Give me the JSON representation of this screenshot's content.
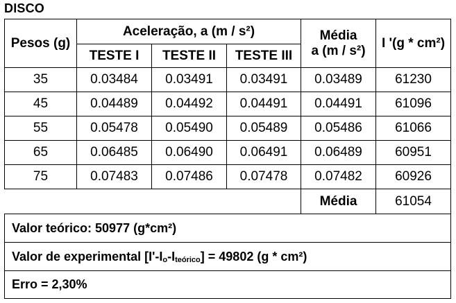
{
  "title": "DISCO",
  "headers": {
    "pesos": "Pesos (g)",
    "aceleracao": "Aceleração, a (m / s²)",
    "teste1": "TESTE I",
    "teste2": "TESTE II",
    "teste3": "TESTE III",
    "media_line1": "Média",
    "media_line2": "a (m / s²)",
    "inertia": "I '(g * cm²)"
  },
  "rows": [
    {
      "peso": "35",
      "t1": "0.03484",
      "t2": "0.03491",
      "t3": "0.03491",
      "media": "0.03489",
      "inertia": "61230"
    },
    {
      "peso": "45",
      "t1": "0.04489",
      "t2": "0.04492",
      "t3": "0.04491",
      "media": "0.04491",
      "inertia": "61096"
    },
    {
      "peso": "55",
      "t1": "0.05478",
      "t2": "0.05490",
      "t3": "0.05489",
      "media": "0.05486",
      "inertia": "61066"
    },
    {
      "peso": "65",
      "t1": "0.06485",
      "t2": "0.06490",
      "t3": "0.06491",
      "media": "0.06489",
      "inertia": "60951"
    },
    {
      "peso": "75",
      "t1": "0.07483",
      "t2": "0.07486",
      "t3": "0.07478",
      "media": "0.07482",
      "inertia": "60926"
    }
  ],
  "media_row": {
    "label": "Média",
    "value": "61054"
  },
  "footer": {
    "valor_teorico": "Valor teórico: 50977 (g*cm²)",
    "experimental_prefix": "Valor de experimental [I'-I",
    "experimental_sub1": "o",
    "experimental_mid": "-I",
    "experimental_sub2": "teórico",
    "experimental_suffix": "] = 49802 (g * cm²)",
    "erro": "Erro = 2,30%"
  }
}
